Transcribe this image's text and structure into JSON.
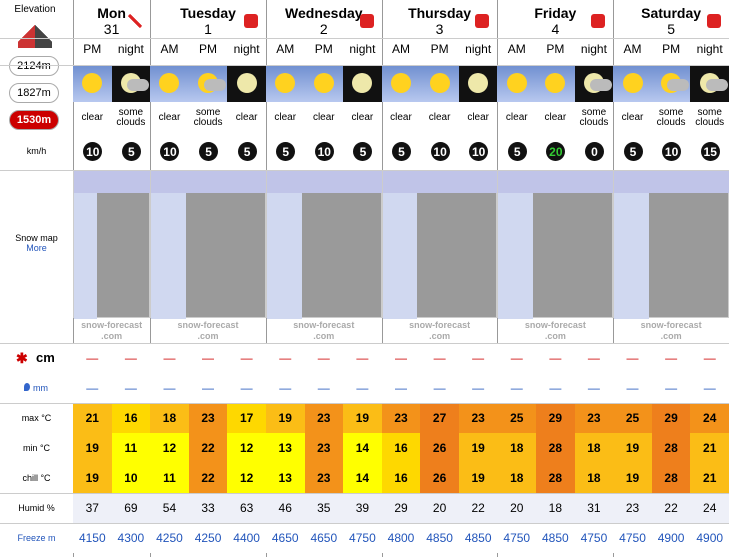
{
  "sidebar": {
    "elevation": "Elevation",
    "levels": [
      "2124m",
      "1827m",
      "1530m"
    ],
    "wind_unit": "km/h",
    "snow_map": "Snow map",
    "more": "More",
    "snow_unit": "cm",
    "rain_unit": "mm",
    "max": "max °C",
    "min": "min °C",
    "chill": "chill °C",
    "humid": "Humid %",
    "freeze": "Freeze m"
  },
  "days": [
    {
      "name": "Mon",
      "date": "31",
      "periods": [
        "PM",
        "night"
      ]
    },
    {
      "name": "Tuesday",
      "date": "1",
      "periods": [
        "AM",
        "PM",
        "night"
      ]
    },
    {
      "name": "Wednesday",
      "date": "2",
      "periods": [
        "AM",
        "PM",
        "night"
      ]
    },
    {
      "name": "Thursday",
      "date": "3",
      "periods": [
        "AM",
        "PM",
        "night"
      ]
    },
    {
      "name": "Friday",
      "date": "4",
      "periods": [
        "AM",
        "PM",
        "night"
      ]
    },
    {
      "name": "Saturday",
      "date": "5",
      "periods": [
        "AM",
        "PM",
        "night"
      ]
    }
  ],
  "watermark": [
    "snow-forecast",
    ".com"
  ],
  "forecast": {
    "weather": [
      "clear",
      "some clouds",
      "clear",
      "some clouds",
      "clear",
      "clear",
      "clear",
      "clear",
      "clear",
      "clear",
      "clear",
      "clear",
      "clear",
      "some clouds",
      "clear",
      "some clouds",
      "some clouds"
    ],
    "wind": [
      10,
      5,
      10,
      5,
      5,
      5,
      10,
      5,
      5,
      10,
      10,
      5,
      20,
      0,
      5,
      10,
      15
    ],
    "snow": [
      "—",
      "—",
      "—",
      "—",
      "—",
      "—",
      "—",
      "—",
      "—",
      "—",
      "—",
      "—",
      "—",
      "—",
      "—",
      "—",
      "—"
    ],
    "rain": [
      "—",
      "—",
      "—",
      "—",
      "—",
      "—",
      "—",
      "—",
      "—",
      "—",
      "—",
      "—",
      "—",
      "—",
      "—",
      "—",
      "—"
    ],
    "max": [
      21,
      16,
      18,
      23,
      17,
      19,
      23,
      19,
      23,
      27,
      23,
      25,
      29,
      23,
      25,
      29,
      24
    ],
    "min": [
      19,
      11,
      12,
      22,
      12,
      13,
      23,
      14,
      16,
      26,
      19,
      18,
      28,
      18,
      19,
      28,
      21
    ],
    "chill": [
      19,
      10,
      11,
      22,
      12,
      13,
      23,
      14,
      16,
      26,
      19,
      18,
      28,
      18,
      19,
      28,
      21
    ],
    "humid": [
      37,
      69,
      54,
      33,
      63,
      46,
      35,
      39,
      29,
      20,
      22,
      20,
      18,
      31,
      23,
      22,
      24
    ],
    "freeze": [
      4150,
      4300,
      4250,
      4250,
      4400,
      4650,
      4650,
      4750,
      4800,
      4850,
      4850,
      4750,
      4850,
      4750,
      4750,
      4900,
      4900
    ]
  }
}
